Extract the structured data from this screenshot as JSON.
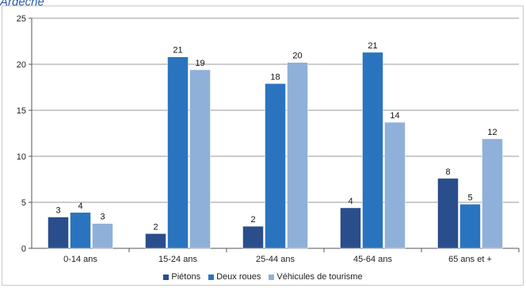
{
  "chart_data": {
    "type": "bar",
    "title": "Ardèche",
    "xlabel": "",
    "ylabel": "",
    "categories": [
      "0-14 ans",
      "15-24 ans",
      "25-44 ans",
      "45-64 ans",
      "65 ans et +"
    ],
    "series": [
      {
        "name": "Piétons",
        "color": "#2a4d8c",
        "values": [
          3.4,
          1.6,
          2.4,
          4.4,
          7.6
        ],
        "labels": [
          "3",
          "2",
          "2",
          "4",
          "8"
        ]
      },
      {
        "name": "Deux roues",
        "color": "#2a74bf",
        "values": [
          3.9,
          20.8,
          17.9,
          21.3,
          4.8
        ],
        "labels": [
          "4",
          "21",
          "18",
          "21",
          "5"
        ]
      },
      {
        "name": "Véhicules de tourisme",
        "color": "#8fb0d9",
        "values": [
          2.7,
          19.4,
          20.2,
          13.7,
          11.9
        ],
        "labels": [
          "3",
          "19",
          "20",
          "14",
          "12"
        ]
      }
    ],
    "ylim": [
      0,
      25
    ],
    "yticks": [
      0,
      5,
      10,
      15,
      20,
      25
    ],
    "grid": true,
    "legend": "bottom"
  }
}
